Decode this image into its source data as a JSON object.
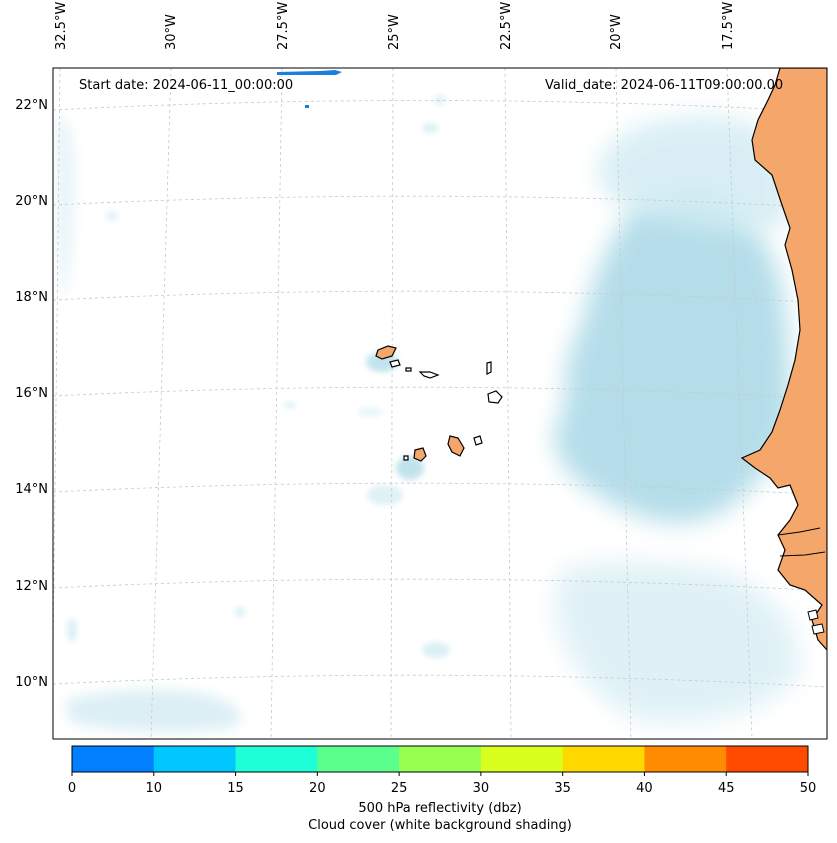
{
  "header": {
    "start_date": "Start date: 2024-06-11_00:00:00",
    "valid_date": "Valid_date: 2024-06-11T09:00:00.00"
  },
  "map": {
    "longitude_labels": [
      "32.5°W",
      "30°W",
      "27.5°W",
      "25°W",
      "22.5°W",
      "20°W",
      "17.5°W"
    ],
    "latitude_labels": [
      "22°N",
      "20°N",
      "18°N",
      "16°N",
      "14°N",
      "12°N",
      "10°N"
    ],
    "colors": {
      "land": "#f5a76b",
      "cloud": "#a8d8e6",
      "coastline": "#000000",
      "grid": "#c8c8c8",
      "reflectivity_blue": "#1a7fe0"
    }
  },
  "colorbar": {
    "ticks": [
      "0",
      "10",
      "15",
      "20",
      "25",
      "30",
      "35",
      "40",
      "45",
      "50"
    ],
    "colors": [
      "#0080ff",
      "#00c8ff",
      "#1effd8",
      "#5aff8c",
      "#96ff50",
      "#d8ff1e",
      "#ffd800",
      "#ff8c00",
      "#ff4b00"
    ],
    "label_line1": "500 hPa reflectivity (dbz)",
    "label_line2": "Cloud cover (white background shading)"
  }
}
